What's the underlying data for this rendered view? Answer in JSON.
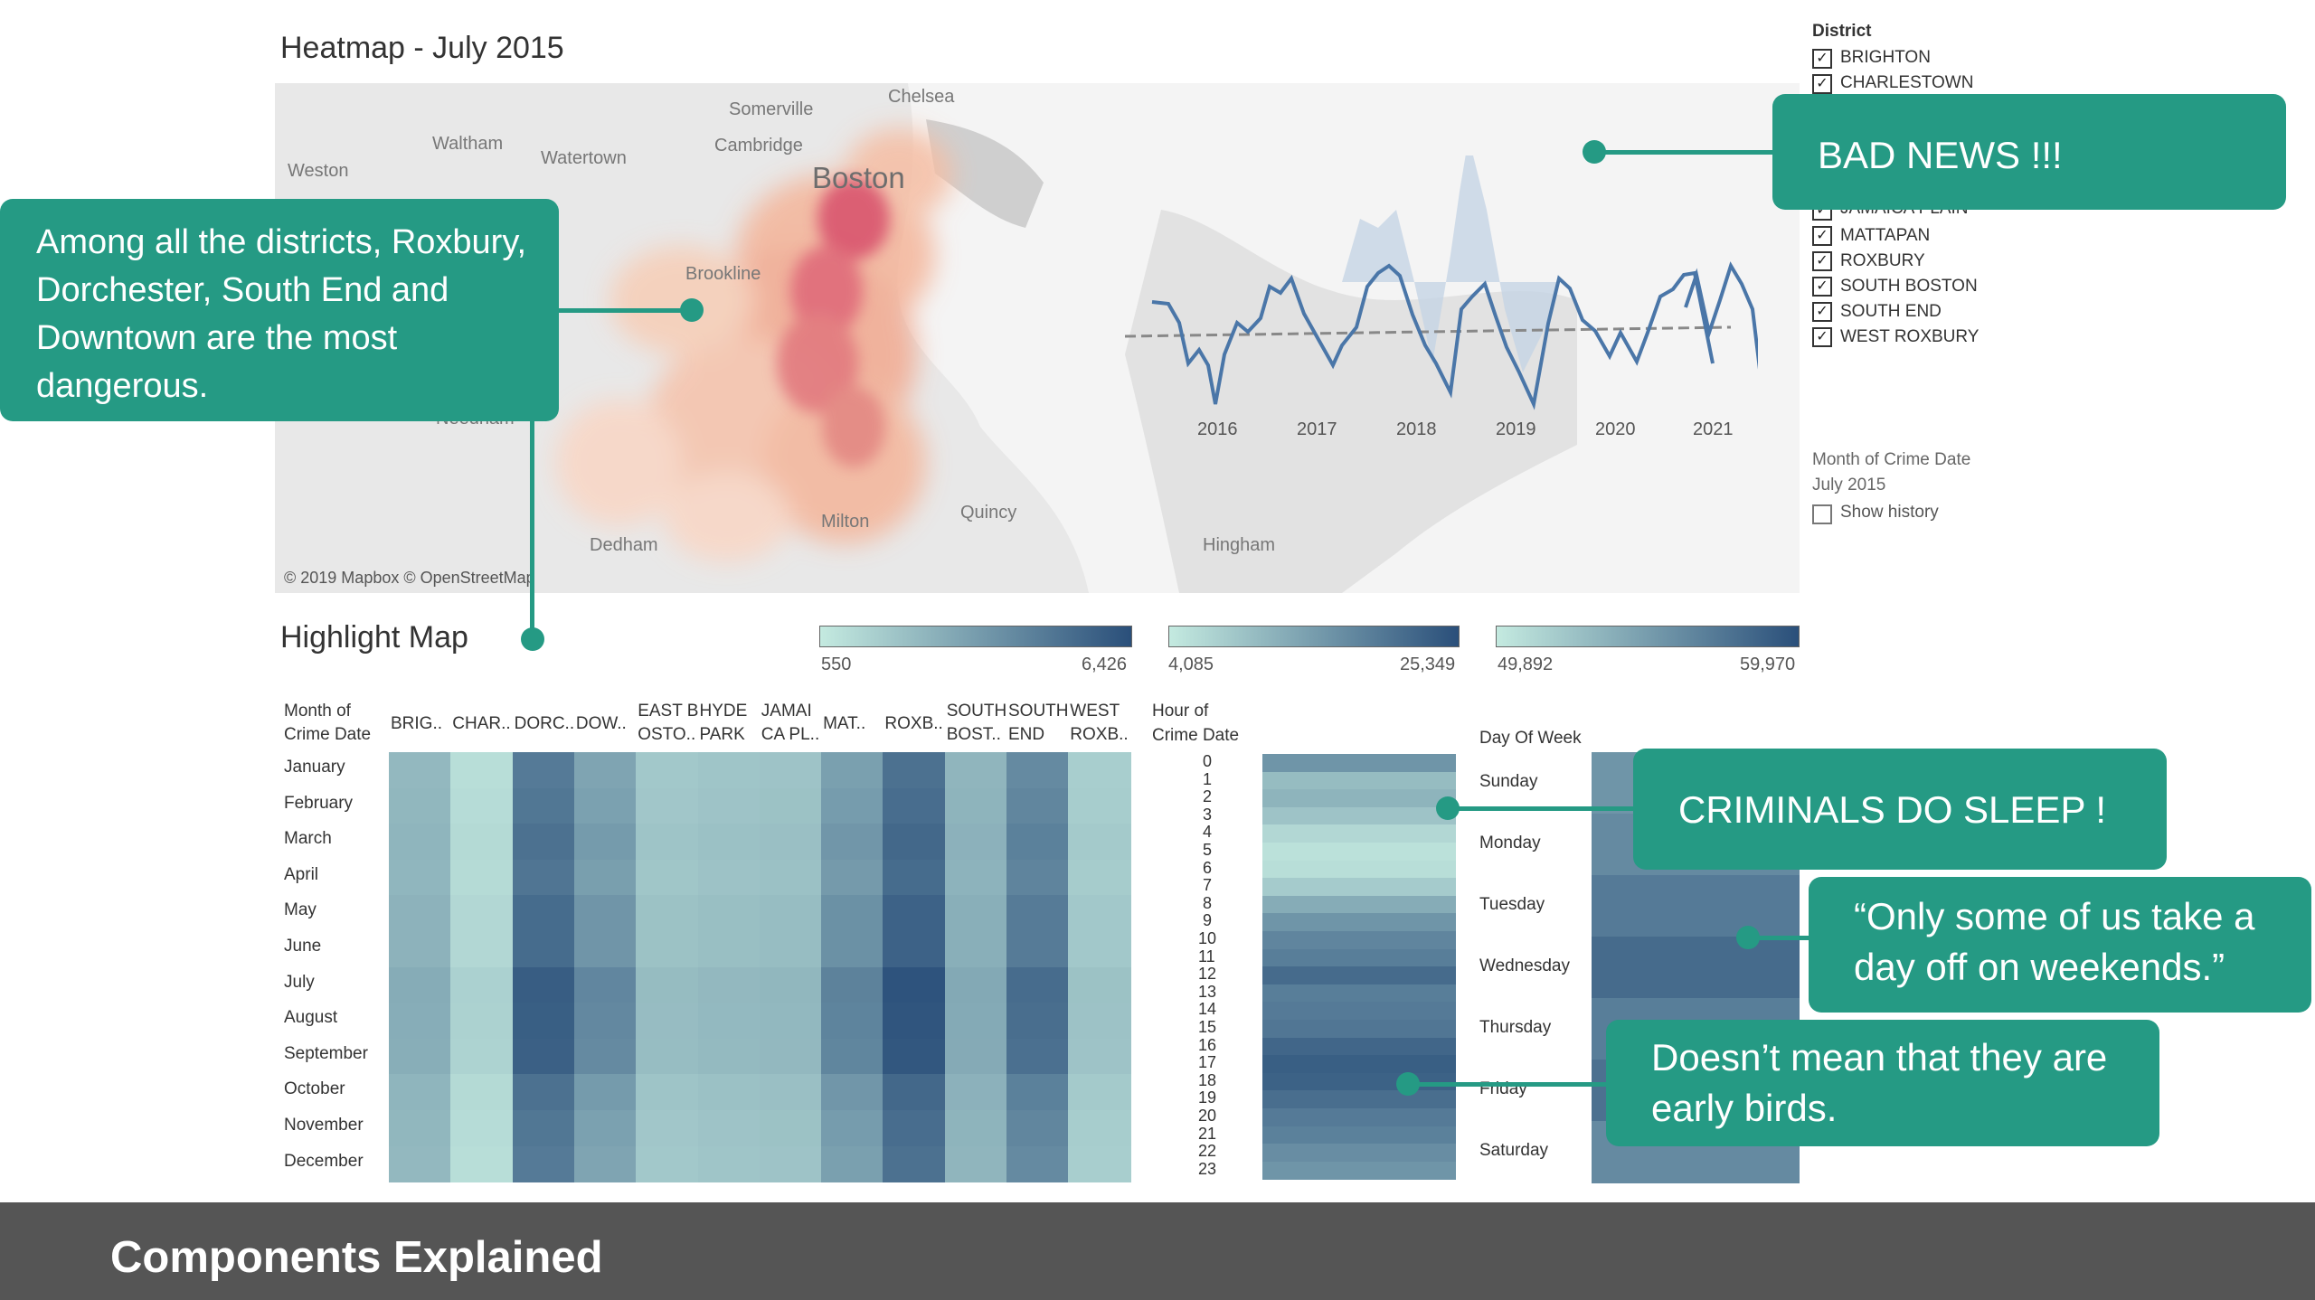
{
  "heatmap_title": "Heatmap - July 2015",
  "highlight_title": "Highlight Map",
  "map": {
    "places": [
      "Chelsea",
      "Somerville",
      "Waltham",
      "Cambridge",
      "Watertown",
      "Weston",
      "Boston",
      "Brookline",
      "Needham",
      "Quincy",
      "Milton",
      "Dedham",
      "Hingham"
    ],
    "attribution": "© 2019 Mapbox © OpenStreetMap"
  },
  "trend_chart": {
    "x_labels": [
      "2016",
      "2017",
      "2018",
      "2019",
      "2020",
      "2021"
    ]
  },
  "district_filter": {
    "title": "District",
    "items_visible": [
      "BRIGHTON",
      "CHARLESTOWN",
      "JAMAICA PLAIN",
      "MATTAPAN",
      "ROXBURY",
      "SOUTH BOSTON",
      "SOUTH END",
      "WEST ROXBURY"
    ]
  },
  "month_filter": {
    "title": "Month of Crime Date",
    "value": "July 2015",
    "show_history": "Show history"
  },
  "legends": [
    {
      "min": "550",
      "max": "6,426"
    },
    {
      "min": "4,085",
      "max": "25,349"
    },
    {
      "min": "49,892",
      "max": "59,970"
    }
  ],
  "month_grid": {
    "row_header_line1": "Month of",
    "row_header_line2": "Crime Date",
    "columns": [
      [
        "BRIG..",
        ""
      ],
      [
        "CHAR..",
        ""
      ],
      [
        "DORC..",
        ""
      ],
      [
        "DOW..",
        ""
      ],
      [
        "EAST B",
        "OSTO.."
      ],
      [
        "HYDE",
        "PARK"
      ],
      [
        "JAMAI",
        "CA PL.."
      ],
      [
        "MAT..",
        ""
      ],
      [
        "ROXB..",
        ""
      ],
      [
        "SOUTH",
        "BOST.."
      ],
      [
        "SOUTH",
        "END"
      ],
      [
        "WEST",
        "ROXB.."
      ]
    ],
    "months": [
      "January",
      "February",
      "March",
      "April",
      "May",
      "June",
      "July",
      "August",
      "September",
      "October",
      "November",
      "December"
    ]
  },
  "hour_grid": {
    "header_line1": "Hour of",
    "header_line2": "Crime Date",
    "hours": [
      "0",
      "1",
      "2",
      "3",
      "4",
      "5",
      "6",
      "7",
      "8",
      "9",
      "10",
      "11",
      "12",
      "13",
      "14",
      "15",
      "16",
      "17",
      "18",
      "19",
      "20",
      "21",
      "22",
      "23"
    ]
  },
  "day_grid": {
    "header": "Day Of Week",
    "days": [
      "Sunday",
      "Monday",
      "Tuesday",
      "Wednesday",
      "Thursday",
      "Friday",
      "Saturday"
    ]
  },
  "callouts": {
    "bad_news": "BAD NEWS !!!",
    "districts": "Among all the districts, Roxbury, Dorchester, South End and Downtown are the most dangerous.",
    "sleep": "CRIMINALS DO SLEEP !",
    "weekends": "“Only some of us take a day off on weekends.”",
    "early_birds": "Doesn’t mean that they are early birds."
  },
  "footer": "Components Explained",
  "colors": {
    "accent": "#259a84",
    "footer": "#555555",
    "teal_light": "#b8e3da",
    "teal_dark": "#2e5f8a"
  }
}
